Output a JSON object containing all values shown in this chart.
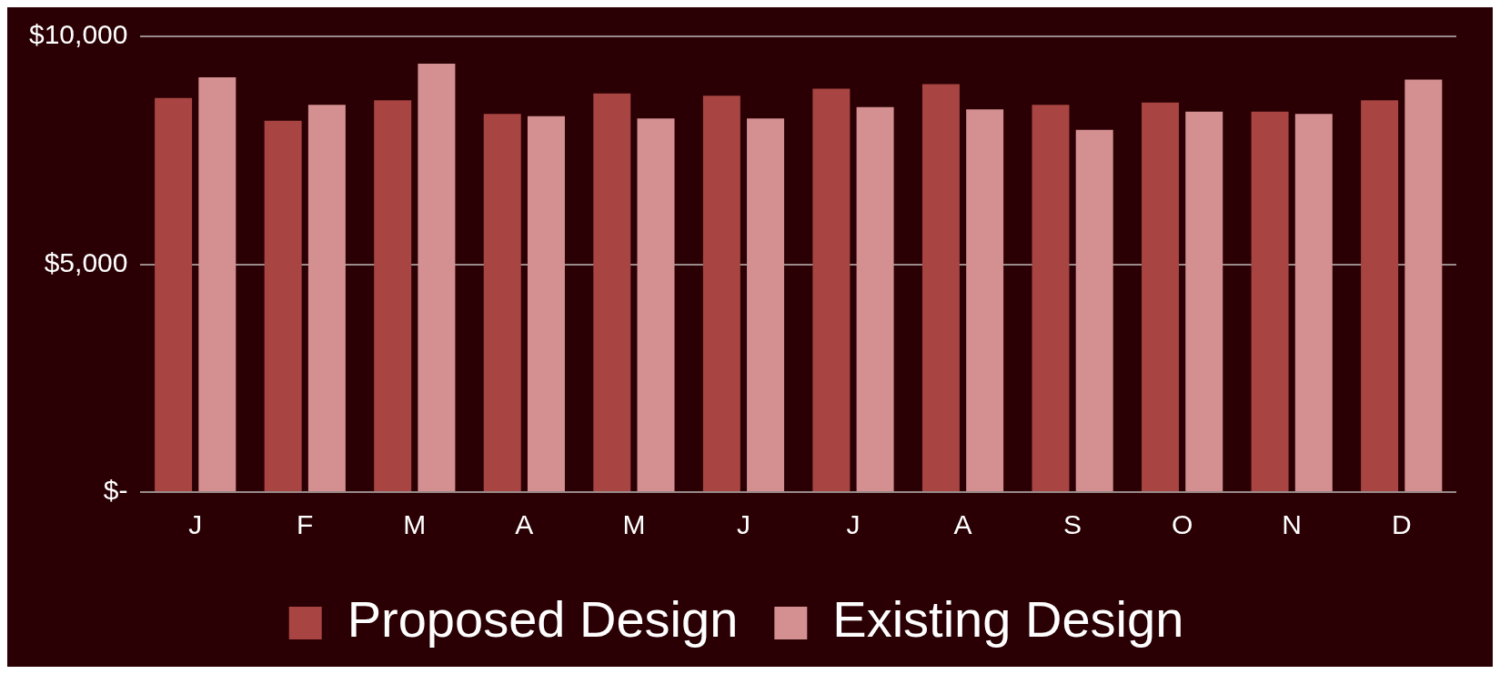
{
  "chart_data": {
    "type": "bar",
    "categories": [
      "J",
      "F",
      "M",
      "A",
      "M",
      "J",
      "J",
      "A",
      "S",
      "O",
      "N",
      "D"
    ],
    "series": [
      {
        "name": "Proposed Design",
        "color": "#a84542",
        "values": [
          8650,
          8150,
          8600,
          8300,
          8750,
          8700,
          8850,
          8950,
          8500,
          8550,
          8350,
          8600
        ]
      },
      {
        "name": "Existing Design",
        "color": "#d49090",
        "values": [
          9100,
          8500,
          9400,
          8250,
          8200,
          8200,
          8450,
          8400,
          7950,
          8350,
          8300,
          9050
        ]
      }
    ],
    "ylim": [
      0,
      10000
    ],
    "yticks": [
      {
        "value": 0,
        "label": "$-"
      },
      {
        "value": 5000,
        "label": "$5,000"
      },
      {
        "value": 10000,
        "label": "$10,000"
      }
    ],
    "grid": "y",
    "legend": "bottom"
  }
}
